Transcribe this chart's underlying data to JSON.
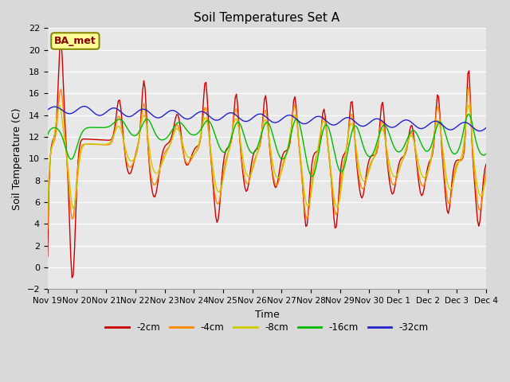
{
  "title": "Soil Temperatures Set A",
  "xlabel": "Time",
  "ylabel": "Soil Temperature (C)",
  "ylim": [
    -2,
    22
  ],
  "annotation": "BA_met",
  "legend": [
    "-2cm",
    "-4cm",
    "-8cm",
    "-16cm",
    "-32cm"
  ],
  "colors": [
    "#cc0000",
    "#ff8800",
    "#cccc00",
    "#00bb00",
    "#2222cc"
  ],
  "xtick_labels": [
    "Nov 19",
    "Nov 20",
    "Nov 21",
    "Nov 22",
    "Nov 23",
    "Nov 24",
    "Nov 25",
    "Nov 26",
    "Nov 27",
    "Nov 28",
    "Nov 29",
    "Nov 30",
    "Dec 1",
    "Dec 2",
    "Dec 3",
    "Dec 4"
  ],
  "background_color": "#d9d9d9",
  "plot_bg": "#e8e8e8"
}
